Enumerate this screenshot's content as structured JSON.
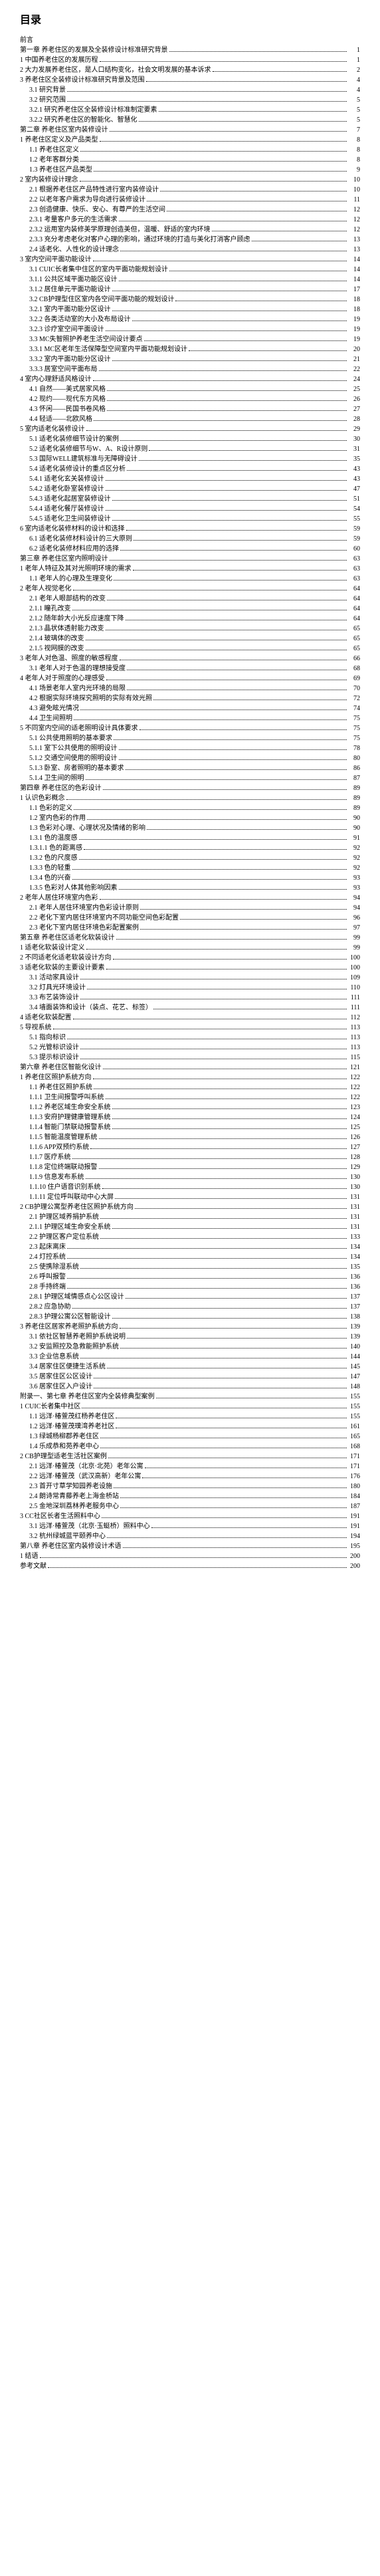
{
  "title": "目录",
  "entries": [
    {
      "level": 1,
      "label": "前言",
      "page": ""
    },
    {
      "level": 1,
      "label": "第一章 养老住区的发展及全装修设计标准研究背景",
      "page": "1"
    },
    {
      "level": 2,
      "label": "1 中国养老住区的发展历程",
      "page": "1"
    },
    {
      "level": 2,
      "label": "2 大力发展养老住区，是人口结构变化，社会文明发展的基本诉求",
      "page": "2"
    },
    {
      "level": 2,
      "label": "3 养老住区全装修设计标准研究背景及范围",
      "page": "4"
    },
    {
      "level": 3,
      "label": "3.1 研究背景",
      "page": "4"
    },
    {
      "level": 3,
      "label": "3.2 研究范围",
      "page": "5"
    },
    {
      "level": 3,
      "label": "3.2.1 研究养老住区全装修设计标准制定要素",
      "page": "5"
    },
    {
      "level": 3,
      "label": "3.2.2 研究养老住区的智能化、智慧化",
      "page": "5"
    },
    {
      "level": 1,
      "label": "第二章 养老住区室内装修设计",
      "page": "7"
    },
    {
      "level": 2,
      "label": "1 养老住区定义及产品类型",
      "page": "8"
    },
    {
      "level": 3,
      "label": "1.1 养老住区定义",
      "page": "8"
    },
    {
      "level": 3,
      "label": "1.2 老年客群分类",
      "page": "8"
    },
    {
      "level": 3,
      "label": "1.3 养老住区产品类型",
      "page": "9"
    },
    {
      "level": 2,
      "label": "2 室内装修设计理念",
      "page": "10"
    },
    {
      "level": 3,
      "label": "2.1 根据养老住区产品特性进行室内装修设计",
      "page": "10"
    },
    {
      "level": 3,
      "label": "2.2 以老年客户需求为导向进行装修设计",
      "page": "11"
    },
    {
      "level": 3,
      "label": "2.3 创造健康、快乐、安心、有尊严的生活空间",
      "page": "12"
    },
    {
      "level": 3,
      "label": "2.3.1 考量客户多元的生活需求",
      "page": "12"
    },
    {
      "level": 3,
      "label": "2.3.2 运用室内装修美学原理创造美但，温暖、舒适的室内环境",
      "page": "12"
    },
    {
      "level": 3,
      "label": "2.3.3 充分考虑老化对客户心理的影响，通过环境的打造与美化打消客户顾虑",
      "page": "13"
    },
    {
      "level": 3,
      "label": "2.4 适老化、人性化的设计理念",
      "page": "13"
    },
    {
      "level": 2,
      "label": "3 室内空间平面功能设计",
      "page": "14"
    },
    {
      "level": 3,
      "label": "3.1 CUIC长者集中住区的室内平面功能规划设计",
      "page": "14"
    },
    {
      "level": 3,
      "label": "3.1.1 公共区域平面功能区设计",
      "page": "14"
    },
    {
      "level": 3,
      "label": "3.1.2 居住单元平面功能设计",
      "page": "17"
    },
    {
      "level": 3,
      "label": "3.2 CB护理型住区室内各空间平面功能的规划设计",
      "page": "18"
    },
    {
      "level": 3,
      "label": "3.2.1 室内平面功能分区设计",
      "page": "18"
    },
    {
      "level": 3,
      "label": "3.2.2 各类活动室的大小及布局设计",
      "page": "19"
    },
    {
      "level": 3,
      "label": "3.2.3 诊疗室空间平面设计",
      "page": "19"
    },
    {
      "level": 3,
      "label": "3.3 MC失智照护养老生活空间设计要点",
      "page": "19"
    },
    {
      "level": 3,
      "label": "3.3.1 MC区老年生活保障型空间室内平面功能规划设计",
      "page": "20"
    },
    {
      "level": 3,
      "label": "3.3.2 室内平面功能分区设计",
      "page": "21"
    },
    {
      "level": 3,
      "label": "3.3.3 居室空间平面布局",
      "page": "22"
    },
    {
      "level": 2,
      "label": "4 室内心理舒适风格设计",
      "page": "24"
    },
    {
      "level": 3,
      "label": "4.1 自然——美式居家风格",
      "page": "25"
    },
    {
      "level": 3,
      "label": "4.2 现约——现代东方风格",
      "page": "26"
    },
    {
      "level": 3,
      "label": "4.3 怀闲——民国书卷风格",
      "page": "27"
    },
    {
      "level": 3,
      "label": "4.4 轻适——北欧风格",
      "page": "28"
    },
    {
      "level": 2,
      "label": "5 室内适老化装修设计",
      "page": "29"
    },
    {
      "level": 3,
      "label": "5.1 适老化装修细节设计的案例",
      "page": "30"
    },
    {
      "level": 3,
      "label": "5.2 适老化装修细节与W、A、R设计原则",
      "page": "31"
    },
    {
      "level": 3,
      "label": "5.3 国际WELL建筑标准与无障碍设计",
      "page": "35"
    },
    {
      "level": 3,
      "label": "5.4 适老化装修设计的重点区分析",
      "page": "43"
    },
    {
      "level": 3,
      "label": "5.4.1 适老化玄关装修设计",
      "page": "43"
    },
    {
      "level": 3,
      "label": "5.4.2 适老化卧室装修设计",
      "page": "47"
    },
    {
      "level": 3,
      "label": "5.4.3 适老化起居室装修设计",
      "page": "51"
    },
    {
      "level": 3,
      "label": "5.4.4 适老化餐厅装修设计",
      "page": "54"
    },
    {
      "level": 3,
      "label": "5.4.5 适老化卫生间装修设计",
      "page": "55"
    },
    {
      "level": 2,
      "label": "6 室内适老化装修材料的设计和选择",
      "page": "59"
    },
    {
      "level": 3,
      "label": "6.1 适老化装修材料设计的三大原则",
      "page": "59"
    },
    {
      "level": 3,
      "label": "6.2 适老化装修材料应用的选择",
      "page": "60"
    },
    {
      "level": 1,
      "label": "第三章 养老住区室内照明设计",
      "page": "63"
    },
    {
      "level": 2,
      "label": "1 老年人特征及其对光照明环境的需求",
      "page": "63"
    },
    {
      "level": 3,
      "label": "1.1 老年人的心理及生理变化",
      "page": "63"
    },
    {
      "level": 2,
      "label": "2 老年人视觉老化",
      "page": "64"
    },
    {
      "level": 3,
      "label": "2.1 老年人眼部结构的改变",
      "page": "64"
    },
    {
      "level": 3,
      "label": "2.1.1 瞳孔改变",
      "page": "64"
    },
    {
      "level": 3,
      "label": "2.1.2 随年龄大小光反应速度下降",
      "page": "64"
    },
    {
      "level": 3,
      "label": "2.1.3 晶状体透射能力改变",
      "page": "65"
    },
    {
      "level": 3,
      "label": "2.1.4 玻璃体的改变",
      "page": "65"
    },
    {
      "level": 3,
      "label": "2.1.5 视网膜的改变",
      "page": "65"
    },
    {
      "level": 2,
      "label": "3 老年人对色温、照度的敏感程度",
      "page": "66"
    },
    {
      "level": 3,
      "label": "3.1 老年人对于色温的理想接受度",
      "page": "68"
    },
    {
      "level": 2,
      "label": "4 老年人对于照度的心理感受",
      "page": "69"
    },
    {
      "level": 3,
      "label": "4.1 场景老年人室内光环境的局限",
      "page": "70"
    },
    {
      "level": 3,
      "label": "4.2 根据实际环境探究照明的实际有效光照",
      "page": "72"
    },
    {
      "level": 3,
      "label": "4.3 避免眩光情况",
      "page": "74"
    },
    {
      "level": 3,
      "label": "4.4 卫生间照明",
      "page": "75"
    },
    {
      "level": 2,
      "label": "5 不同室内空间的适老照明设计具体要求",
      "page": "75"
    },
    {
      "level": 3,
      "label": "5.1 公共使用照明的基本要求",
      "page": "75"
    },
    {
      "level": 3,
      "label": "5.1.1 室下公共使用的照明设计",
      "page": "78"
    },
    {
      "level": 3,
      "label": "5.1.2 交通空间使用的照明设计",
      "page": "80"
    },
    {
      "level": 3,
      "label": "5.1.3 卧室、房者照明的基本要求",
      "page": "86"
    },
    {
      "level": 3,
      "label": "5.1.4 卫生间的照明",
      "page": "87"
    },
    {
      "level": 1,
      "label": "第四章 养老住区的色彩设计",
      "page": "89"
    },
    {
      "level": 2,
      "label": "1 认识色彩概念",
      "page": "89"
    },
    {
      "level": 3,
      "label": "1.1 色彩的定义",
      "page": "89"
    },
    {
      "level": 3,
      "label": "1.2 室内色彩的作用",
      "page": "90"
    },
    {
      "level": 3,
      "label": "1.3 色彩对心理、心理状况及情绪的影响",
      "page": "90"
    },
    {
      "level": 3,
      "label": "1.3.1 色的温度感",
      "page": "91"
    },
    {
      "level": 3,
      "label": "1.3.1.1 色的距离感",
      "page": "92"
    },
    {
      "level": 3,
      "label": "1.3.2 色的尺度感",
      "page": "92"
    },
    {
      "level": 3,
      "label": "1.3.3 色的轻重",
      "page": "92"
    },
    {
      "level": 3,
      "label": "1.3.4 色的兴奋",
      "page": "93"
    },
    {
      "level": 3,
      "label": "1.3.5 色彩对人体其他影响因素",
      "page": "93"
    },
    {
      "level": 2,
      "label": "2 老年人居住环境室内色彩",
      "page": "94"
    },
    {
      "level": 3,
      "label": "2.1 老年人居住环境室内色彩设计原则",
      "page": "94"
    },
    {
      "level": 3,
      "label": "2.2 老化下室内居住环境室内不同功能空间色彩配置",
      "page": "96"
    },
    {
      "level": 3,
      "label": "2.3 老化下室内居住环境色彩配置案例",
      "page": "97"
    },
    {
      "level": 1,
      "label": "第五章 养老住区适老化软装设计",
      "page": "99"
    },
    {
      "level": 2,
      "label": "1 适老化软装设计定义",
      "page": "99"
    },
    {
      "level": 2,
      "label": "2 不同适老化适老软装设计方向",
      "page": "100"
    },
    {
      "level": 2,
      "label": "3 适老化软装的主要设计要素",
      "page": "100"
    },
    {
      "level": 3,
      "label": "3.1 活动家具设计",
      "page": "109"
    },
    {
      "level": 3,
      "label": "3.2 灯具光环境设计",
      "page": "110"
    },
    {
      "level": 3,
      "label": "3.3 布艺装饰设计",
      "page": "111"
    },
    {
      "level": 3,
      "label": "3.4 墙面装饰和设计（装点、花艺、标签）",
      "page": "111"
    },
    {
      "level": 2,
      "label": "4 适老化软装配置",
      "page": "112"
    },
    {
      "level": 2,
      "label": "5 导视系统",
      "page": "113"
    },
    {
      "level": 3,
      "label": "5.1 指向标识",
      "page": "113"
    },
    {
      "level": 3,
      "label": "5.2 光管标识设计",
      "page": "113"
    },
    {
      "level": 3,
      "label": "5.3 提示标识设计",
      "page": "115"
    },
    {
      "level": 1,
      "label": "第六章 养老住区智能化设计",
      "page": "121"
    },
    {
      "level": 2,
      "label": "1 养老住区照护系统方向",
      "page": "122"
    },
    {
      "level": 3,
      "label": "1.1 养老住区照护系统",
      "page": "122"
    },
    {
      "level": 3,
      "label": "1.1.1 卫生间报警呼叫系统",
      "page": "122"
    },
    {
      "level": 3,
      "label": "1.1.2 养老区域生命安全系统",
      "page": "123"
    },
    {
      "level": 3,
      "label": "1.1.3 安府护理健康管理系统",
      "page": "124"
    },
    {
      "level": 3,
      "label": "1.1.4 智能门禁联动报警系统",
      "page": "125"
    },
    {
      "level": 3,
      "label": "1.1.5 智能温度管理系统",
      "page": "126"
    },
    {
      "level": 3,
      "label": "1.1.6 APP双预约系统",
      "page": "127"
    },
    {
      "level": 3,
      "label": "1.1.7 医疗系统",
      "page": "128"
    },
    {
      "level": 3,
      "label": "1.1.8 定位终端联动报警",
      "page": "129"
    },
    {
      "level": 3,
      "label": "1.1.9 信息发布系统",
      "page": "130"
    },
    {
      "level": 3,
      "label": "1.1.10 住户语音识别系统",
      "page": "130"
    },
    {
      "level": 3,
      "label": "1.1.11 定位呼叫联动中心大屏",
      "page": "131"
    },
    {
      "level": 2,
      "label": "2 CB护理公寓型养老住区照护系统方向",
      "page": "131"
    },
    {
      "level": 3,
      "label": "2.1 护理区域养捐护系统",
      "page": "131"
    },
    {
      "level": 3,
      "label": "2.1.1 护理区域生命安全系统",
      "page": "131"
    },
    {
      "level": 3,
      "label": "2.2 护理区客户定位系统",
      "page": "133"
    },
    {
      "level": 3,
      "label": "2.3 起床离床",
      "page": "134"
    },
    {
      "level": 3,
      "label": "2.4 灯控系统",
      "page": "134"
    },
    {
      "level": 3,
      "label": "2.5 使携除湿系统",
      "page": "135"
    },
    {
      "level": 3,
      "label": "2.6 呼叫报警",
      "page": "136"
    },
    {
      "level": 3,
      "label": "2.8 手持终端",
      "page": "136"
    },
    {
      "level": 3,
      "label": "2.8.1 护理区域情感点心公区设计",
      "page": "137"
    },
    {
      "level": 3,
      "label": "2.8.2 应急协助",
      "page": "137"
    },
    {
      "level": 3,
      "label": "2.8.3 护理公寓公区智能设计",
      "page": "138"
    },
    {
      "level": 2,
      "label": "3 养老住区居家养老照护系统方向",
      "page": "139"
    },
    {
      "level": 3,
      "label": "3.1 依社区智慧养老照护系统说明",
      "page": "139"
    },
    {
      "level": 3,
      "label": "3.2 安监照控及急救能照护系统",
      "page": "140"
    },
    {
      "level": 3,
      "label": "3.3 企业信息系统",
      "page": "144"
    },
    {
      "level": 3,
      "label": "3.4 居家住区便捷生活系统",
      "page": "145"
    },
    {
      "level": 3,
      "label": "3.5 居家住区公区设计",
      "page": "147"
    },
    {
      "level": 3,
      "label": "3.6 居家住区入户设计",
      "page": "148"
    },
    {
      "level": 1,
      "label": "附录一、第七章 养老住区室内全装修典型案例",
      "page": "155"
    },
    {
      "level": 2,
      "label": "1 CUIC长者集中社区",
      "page": "155"
    },
    {
      "level": 3,
      "label": "1.1 远洋·椿萱茂红杨养老住区",
      "page": "155"
    },
    {
      "level": 3,
      "label": "1.2 远洋·椿萱茂璞湾养老社区",
      "page": "161"
    },
    {
      "level": 3,
      "label": "1.3 绿城杨柳郡养老住区",
      "page": "165"
    },
    {
      "level": 3,
      "label": "1.4 乐成恭和苑养老中心",
      "page": "168"
    },
    {
      "level": 2,
      "label": "2 CB护理型适老生活社区案例",
      "page": "171"
    },
    {
      "level": 3,
      "label": "2.1 远洋·椿萱茂（北京·北苑）老年公寓",
      "page": "171"
    },
    {
      "level": 3,
      "label": "2.2 远洋·椿萱茂（武汉高新）老年公寓",
      "page": "176"
    },
    {
      "level": 3,
      "label": "2.3 首开寸草学知园养老设施",
      "page": "180"
    },
    {
      "level": 3,
      "label": "2.4 朗诗常青藤养老上海金桥站",
      "page": "184"
    },
    {
      "level": 3,
      "label": "2.5 金地深圳荔林养老服务中心",
      "page": "187"
    },
    {
      "level": 2,
      "label": "3 CC社区长者生活照料中心",
      "page": "191"
    },
    {
      "level": 3,
      "label": "3.1 远洋·椿萱茂（北京·玉蜓桥）照料中心",
      "page": "191"
    },
    {
      "level": 3,
      "label": "3.2 杭州绿城蓝平颐养中心",
      "page": "194"
    },
    {
      "level": 1,
      "label": "第八章 养老住区室内装修设计术语",
      "page": "195"
    },
    {
      "level": 2,
      "label": "1 结语",
      "page": "200"
    },
    {
      "level": 2,
      "label": "参考文献",
      "page": "200"
    }
  ]
}
